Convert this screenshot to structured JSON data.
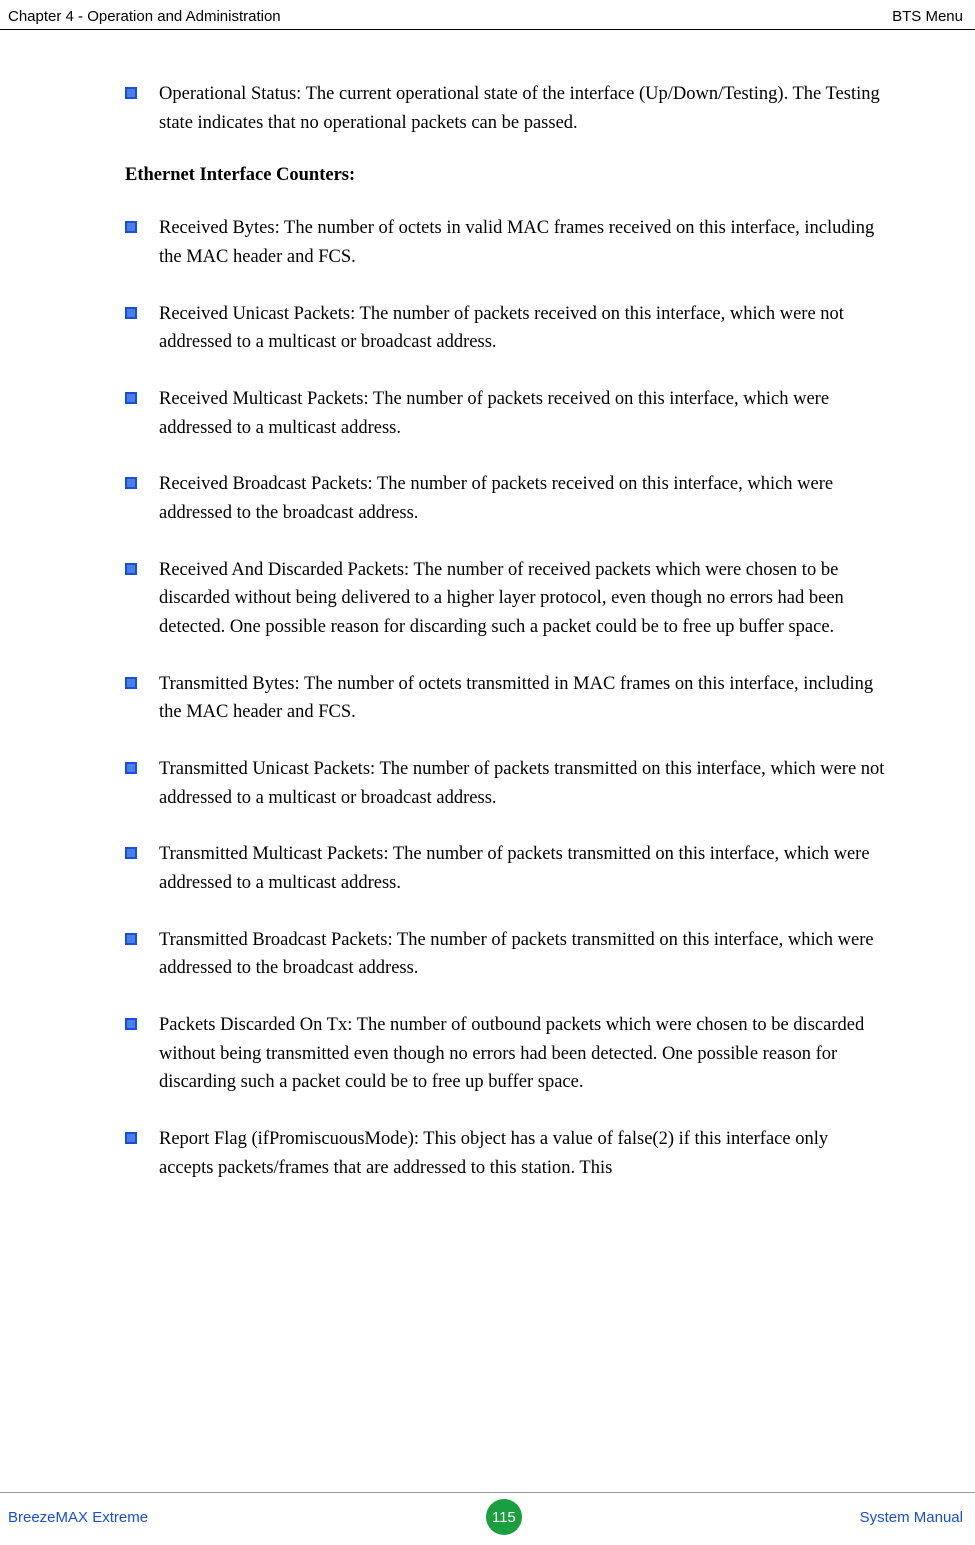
{
  "header": {
    "left": "Chapter 4 - Operation and Administration",
    "right": "BTS Menu"
  },
  "bullets_top": [
    "Operational Status: The current operational state of the interface (Up/Down/Testing). The Testing state indicates that no operational packets can be passed."
  ],
  "section_heading": "Ethernet Interface Counters",
  "section_heading_suffix": ":",
  "bullets_main": [
    "Received Bytes: The number of octets in valid MAC frames received on this interface, including the MAC header and FCS.",
    "Received Unicast Packets: The number of packets received on this interface, which were not addressed to a multicast or broadcast address.",
    "Received Multicast Packets: The number of packets received on this interface, which were addressed to a multicast address.",
    "Received Broadcast Packets: The number of packets received on this interface, which were addressed to the broadcast address.",
    "Received And Discarded Packets: The number of received packets which were chosen to be discarded without being delivered to a higher layer protocol, even though no errors had been detected. One possible reason for discarding such a packet could be to free up buffer space.",
    "Transmitted Bytes: The number of octets transmitted in MAC frames on this interface, including the MAC header and FCS.",
    "Transmitted Unicast Packets: The number of packets transmitted on this interface, which were not addressed to a multicast or broadcast address.",
    "Transmitted Multicast Packets: The number of packets transmitted on this interface, which were addressed to a multicast address.",
    "Transmitted Broadcast Packets: The number of packets transmitted on this interface, which were addressed to the broadcast address.",
    "Packets Discarded On Tx: The number of outbound packets which were chosen to be discarded without being transmitted even though no errors had been detected. One possible reason for discarding such a packet could be to free up buffer space.",
    "Report Flag (ifPromiscuousMode): This object has a value of false(2) if this interface only accepts packets/frames that are addressed to this station. This"
  ],
  "footer": {
    "left": "BreezeMAX Extreme",
    "page": "115",
    "right": "System Manual"
  },
  "colors": {
    "bullet_border": "#1a4fd0",
    "bullet_fill": "#4a7de8",
    "link_blue": "#1a4fd0",
    "page_badge": "#1a9e3f",
    "text": "#000000",
    "background": "#ffffff"
  },
  "typography": {
    "body_fontsize_pt": 14,
    "header_fontsize_pt": 11,
    "body_family": "Georgia serif",
    "header_family": "Arial sans-serif",
    "line_height": 1.55
  }
}
